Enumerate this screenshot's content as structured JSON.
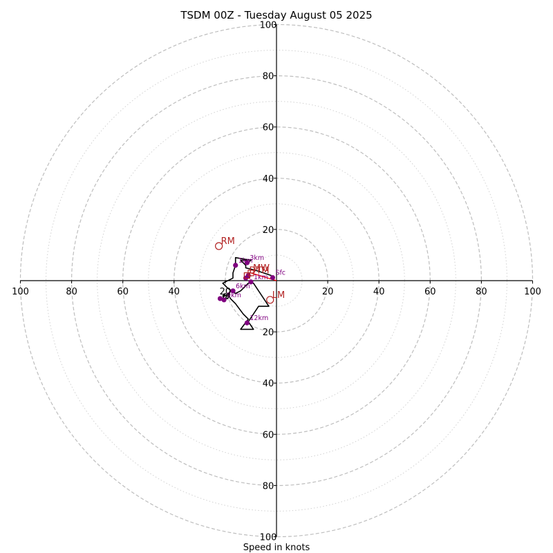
{
  "chart_data": {
    "type": "scatter",
    "subtype": "hodograph",
    "title": "TSDM 00Z - Tuesday August 05 2025",
    "xlabel": "Speed in knots",
    "ylabel": "",
    "xlim": [
      -100,
      100
    ],
    "ylim": [
      -100,
      100
    ],
    "major_rings": [
      20,
      40,
      60,
      80,
      100
    ],
    "minor_rings": [
      10,
      30,
      50,
      70,
      90
    ],
    "grid": true,
    "x_ticks": [
      "100",
      "80",
      "60",
      "40",
      "20",
      "20",
      "40",
      "60",
      "80",
      "100"
    ],
    "y_ticks": [
      "100",
      "80",
      "60",
      "40",
      "20",
      "20",
      "40",
      "60",
      "80",
      "100"
    ],
    "tick_values": [
      -100,
      -80,
      -60,
      -40,
      -20,
      20,
      40,
      60,
      80,
      100
    ],
    "hodograph_line": [
      [
        -2,
        2
      ],
      [
        -8,
        4
      ],
      [
        -12,
        5
      ],
      [
        -12,
        6
      ],
      [
        -14,
        8
      ],
      [
        -12,
        8
      ],
      [
        -11,
        7
      ],
      [
        -10,
        8
      ],
      [
        -16,
        9
      ],
      [
        -16,
        6
      ],
      [
        -17,
        3
      ],
      [
        -17,
        1
      ],
      [
        -21,
        -1
      ],
      [
        -19,
        -3
      ],
      [
        -16,
        -5
      ],
      [
        -14,
        -4
      ],
      [
        -11,
        -1
      ],
      [
        -9,
        -1
      ],
      [
        -7,
        -4
      ],
      [
        -3,
        -10
      ],
      [
        -7,
        -10
      ],
      [
        -9,
        -13
      ],
      [
        -11,
        -16
      ],
      [
        -9,
        -19
      ],
      [
        -14,
        -19
      ],
      [
        -11,
        -15
      ],
      [
        -13,
        -13
      ],
      [
        -16,
        -9
      ],
      [
        -18,
        -7
      ],
      [
        -19,
        -5
      ],
      [
        -20,
        -6
      ],
      [
        -21,
        -6
      ],
      [
        -20,
        -5
      ],
      [
        -21,
        -7
      ],
      [
        -19,
        -7
      ],
      [
        -18,
        -4
      ],
      [
        -20,
        -7
      ]
    ],
    "height_points": [
      {
        "label": "Sfc",
        "u": -1.5,
        "v": 1.2
      },
      {
        "label": "1km",
        "u": -10,
        "v": -0.5
      },
      {
        "label": "3km",
        "u": -11.5,
        "v": 7
      },
      {
        "label": "1km",
        "u": -16,
        "v": 6
      },
      {
        "label": "",
        "u": -12,
        "v": 1
      },
      {
        "label": "6km",
        "u": -17,
        "v": -4
      },
      {
        "label": "9km",
        "u": -20.5,
        "v": -7.5
      },
      {
        "label": "12km",
        "u": -11.5,
        "v": -16.5
      },
      {
        "label": "",
        "u": -22,
        "v": -7
      },
      {
        "label": "",
        "u": -11,
        "v": 2
      }
    ],
    "storm_motion": [
      {
        "label": "RM",
        "u": -22.5,
        "v": 13.5
      },
      {
        "label": "LM",
        "u": -2.5,
        "v": -7.5
      },
      {
        "label": "MW",
        "u": -10,
        "v": 3
      },
      {
        "label": "DTM",
        "u": -11.5,
        "v": 2
      }
    ],
    "colors": {
      "hodograph": "#000000",
      "height_points": "#800080",
      "storm_motion": "#b22222",
      "bunkers_vector": "#ff0000",
      "grid": "#bdbdbd"
    }
  }
}
